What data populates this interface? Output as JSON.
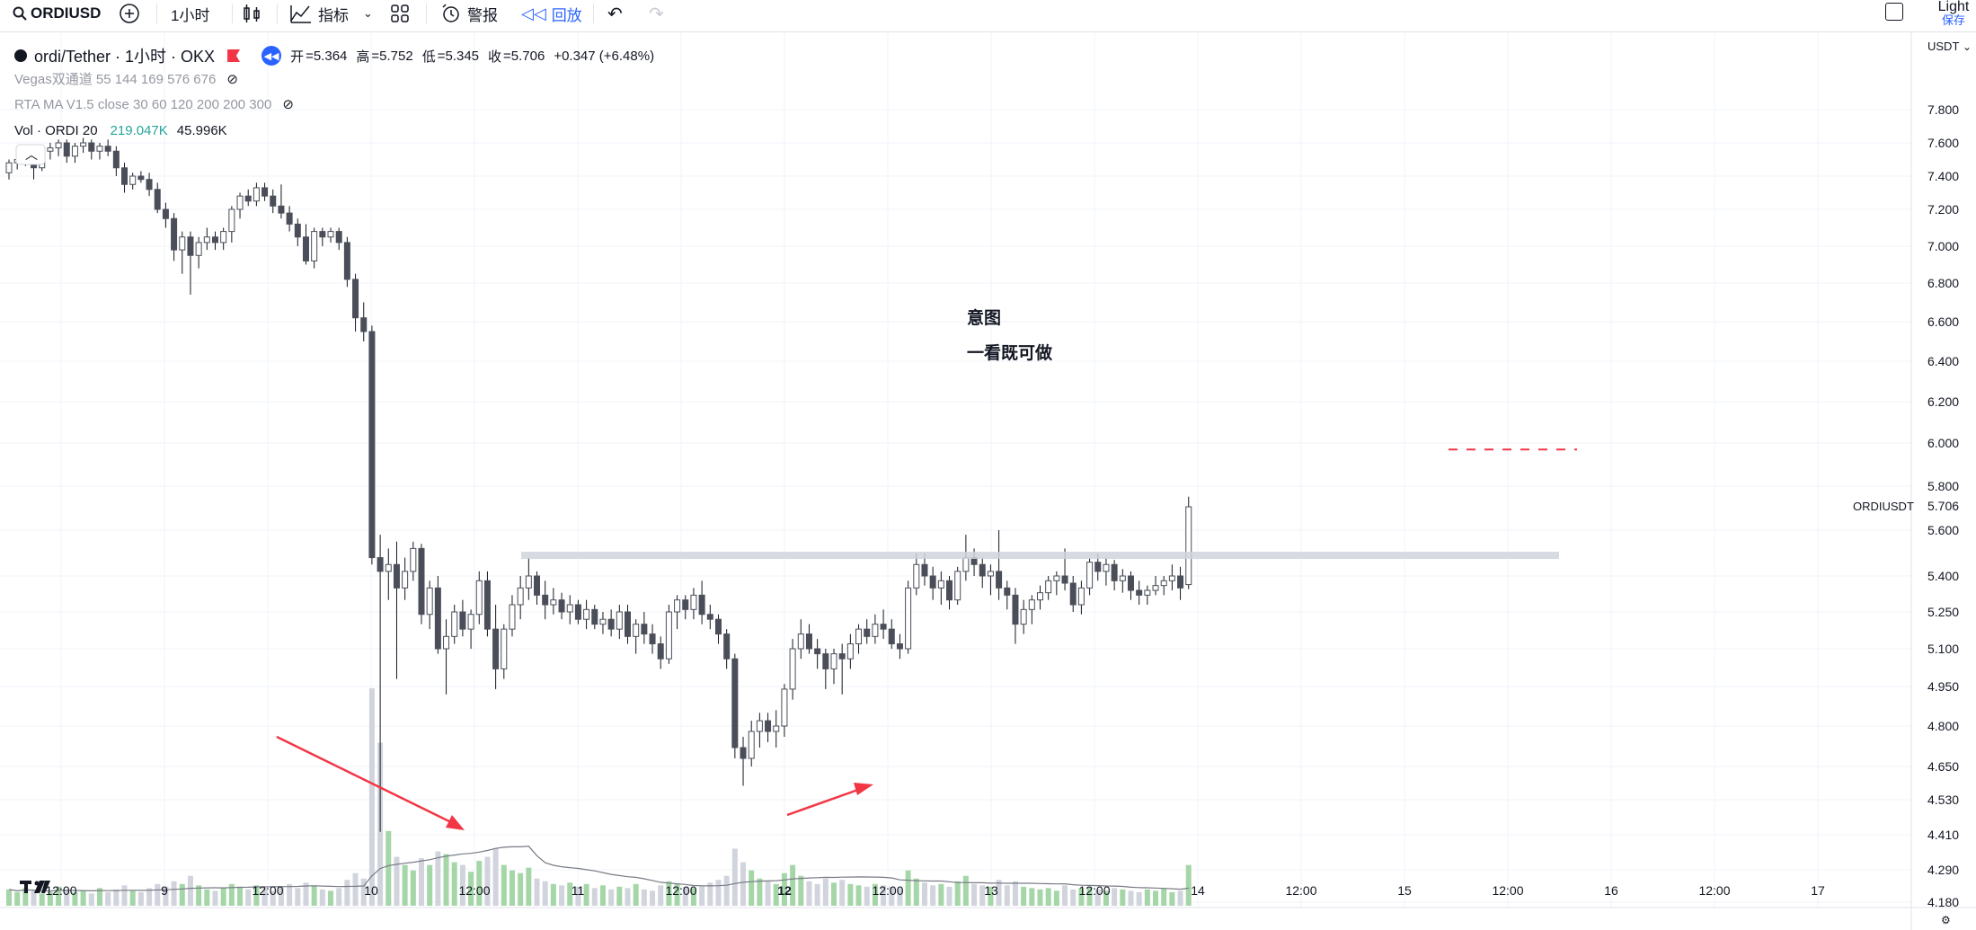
{
  "toolbar": {
    "symbol": "ORDIUSD",
    "interval": "1小时",
    "indicators": "指标",
    "alert": "警报",
    "replay": "回放",
    "theme": "Light",
    "save": "保存"
  },
  "legend": {
    "title": "ordi/Tether · 1小时 · OKX",
    "open_label": "开",
    "open": "=5.364",
    "high_label": "高",
    "high": "=5.752",
    "low_label": "低",
    "low": "=5.345",
    "close_label": "收",
    "close": "=5.706",
    "change": "+0.347 (+6.48%)",
    "indicator1": "Vegas双通道 55 144 169 576 676",
    "indicator2": "RTA MA V1.5 close 30 60 120 200 200 300",
    "volume_label": "Vol · ORDI 20",
    "volume_value": "219.047K",
    "volume_ma": "45.996K"
  },
  "annotations": {
    "line1": "意图",
    "line2": "一看既可做"
  },
  "price_axis": {
    "currency": "USDT",
    "symbol_tag": "ORDIUSDT",
    "last_price": "5.706",
    "ticks": [
      "7.800",
      "7.600",
      "7.400",
      "7.200",
      "7.000",
      "6.800",
      "6.600",
      "6.400",
      "6.200",
      "6.000",
      "5.800",
      "5.600",
      "5.400",
      "5.250",
      "5.100",
      "4.950",
      "4.800",
      "4.650",
      "4.530",
      "4.410",
      "4.290",
      "4.180"
    ]
  },
  "time_axis": {
    "labels": [
      "12:00",
      "9",
      "12:00",
      "10",
      "12:00",
      "11",
      "12:00",
      "12",
      "12:00",
      "13",
      "12:00",
      "14",
      "12:00",
      "15",
      "12:00",
      "16",
      "12:00",
      "17"
    ]
  },
  "chart_data": {
    "type": "candlestick",
    "title": "ordi/Tether · 1小时 · OKX",
    "y_axis": "USDT",
    "resistance_level": 5.49,
    "target_level": 5.97,
    "candles": [
      [
        7.42,
        7.5,
        7.38,
        7.48
      ],
      [
        7.48,
        7.54,
        7.44,
        7.5
      ],
      [
        7.5,
        7.56,
        7.46,
        7.53
      ],
      [
        7.53,
        7.55,
        7.38,
        7.45
      ],
      [
        7.45,
        7.57,
        7.43,
        7.55
      ],
      [
        7.55,
        7.6,
        7.5,
        7.57
      ],
      [
        7.57,
        7.62,
        7.52,
        7.6
      ],
      [
        7.6,
        7.62,
        7.48,
        7.52
      ],
      [
        7.52,
        7.6,
        7.48,
        7.58
      ],
      [
        7.58,
        7.63,
        7.54,
        7.6
      ],
      [
        7.6,
        7.62,
        7.5,
        7.55
      ],
      [
        7.55,
        7.6,
        7.5,
        7.58
      ],
      [
        7.58,
        7.62,
        7.52,
        7.55
      ],
      [
        7.55,
        7.58,
        7.4,
        7.45
      ],
      [
        7.45,
        7.48,
        7.3,
        7.35
      ],
      [
        7.35,
        7.42,
        7.32,
        7.4
      ],
      [
        7.4,
        7.43,
        7.36,
        7.38
      ],
      [
        7.38,
        7.42,
        7.28,
        7.32
      ],
      [
        7.32,
        7.36,
        7.18,
        7.2
      ],
      [
        7.2,
        7.24,
        7.1,
        7.15
      ],
      [
        7.15,
        7.18,
        6.92,
        6.98
      ],
      [
        6.98,
        7.08,
        6.85,
        7.05
      ],
      [
        7.05,
        7.08,
        6.74,
        6.95
      ],
      [
        6.95,
        7.05,
        6.88,
        7.02
      ],
      [
        7.02,
        7.1,
        6.98,
        7.05
      ],
      [
        7.05,
        7.08,
        6.98,
        7.02
      ],
      [
        7.02,
        7.1,
        6.98,
        7.08
      ],
      [
        7.08,
        7.22,
        7.02,
        7.2
      ],
      [
        7.2,
        7.3,
        7.15,
        7.28
      ],
      [
        7.28,
        7.32,
        7.22,
        7.25
      ],
      [
        7.25,
        7.36,
        7.22,
        7.33
      ],
      [
        7.33,
        7.36,
        7.25,
        7.28
      ],
      [
        7.28,
        7.32,
        7.18,
        7.22
      ],
      [
        7.22,
        7.35,
        7.15,
        7.18
      ],
      [
        7.18,
        7.22,
        7.08,
        7.12
      ],
      [
        7.12,
        7.15,
        7.0,
        7.05
      ],
      [
        7.05,
        7.12,
        6.9,
        6.92
      ],
      [
        6.92,
        7.1,
        6.88,
        7.08
      ],
      [
        7.08,
        7.1,
        7.0,
        7.05
      ],
      [
        7.05,
        7.1,
        7.02,
        7.08
      ],
      [
        7.08,
        7.1,
        6.98,
        7.02
      ],
      [
        7.02,
        7.05,
        6.78,
        6.82
      ],
      [
        6.82,
        6.85,
        6.55,
        6.62
      ],
      [
        6.62,
        6.7,
        6.5,
        6.55
      ],
      [
        6.55,
        6.58,
        5.45,
        5.48
      ],
      [
        5.48,
        5.58,
        4.42,
        5.42
      ],
      [
        5.42,
        5.52,
        5.3,
        5.45
      ],
      [
        5.45,
        5.55,
        4.98,
        5.35
      ],
      [
        5.35,
        5.48,
        5.3,
        5.42
      ],
      [
        5.42,
        5.55,
        5.38,
        5.52
      ],
      [
        5.52,
        5.54,
        5.2,
        5.24
      ],
      [
        5.24,
        5.38,
        5.18,
        5.35
      ],
      [
        5.35,
        5.4,
        5.08,
        5.1
      ],
      [
        5.1,
        5.22,
        4.92,
        5.15
      ],
      [
        5.15,
        5.28,
        5.12,
        5.25
      ],
      [
        5.25,
        5.3,
        5.15,
        5.18
      ],
      [
        5.18,
        5.26,
        5.1,
        5.24
      ],
      [
        5.24,
        5.42,
        5.2,
        5.38
      ],
      [
        5.38,
        5.42,
        5.15,
        5.18
      ],
      [
        5.18,
        5.28,
        4.94,
        5.02
      ],
      [
        5.02,
        5.2,
        4.98,
        5.18
      ],
      [
        5.18,
        5.32,
        5.15,
        5.28
      ],
      [
        5.28,
        5.4,
        5.22,
        5.35
      ],
      [
        5.35,
        5.48,
        5.3,
        5.4
      ],
      [
        5.4,
        5.42,
        5.28,
        5.32
      ],
      [
        5.32,
        5.38,
        5.22,
        5.28
      ],
      [
        5.28,
        5.35,
        5.24,
        5.3
      ],
      [
        5.3,
        5.33,
        5.22,
        5.25
      ],
      [
        5.25,
        5.32,
        5.2,
        5.28
      ],
      [
        5.28,
        5.3,
        5.2,
        5.22
      ],
      [
        5.22,
        5.3,
        5.18,
        5.26
      ],
      [
        5.26,
        5.28,
        5.18,
        5.2
      ],
      [
        5.2,
        5.25,
        5.16,
        5.22
      ],
      [
        5.22,
        5.26,
        5.15,
        5.18
      ],
      [
        5.18,
        5.28,
        5.14,
        5.25
      ],
      [
        5.25,
        5.28,
        5.12,
        5.15
      ],
      [
        5.15,
        5.22,
        5.08,
        5.2
      ],
      [
        5.2,
        5.25,
        5.12,
        5.16
      ],
      [
        5.16,
        5.2,
        5.08,
        5.12
      ],
      [
        5.12,
        5.15,
        5.02,
        5.06
      ],
      [
        5.06,
        5.28,
        5.04,
        5.25
      ],
      [
        5.25,
        5.32,
        5.18,
        5.3
      ],
      [
        5.3,
        5.32,
        5.22,
        5.26
      ],
      [
        5.26,
        5.35,
        5.22,
        5.32
      ],
      [
        5.32,
        5.38,
        5.2,
        5.24
      ],
      [
        5.24,
        5.28,
        5.18,
        5.22
      ],
      [
        5.22,
        5.24,
        5.12,
        5.16
      ],
      [
        5.16,
        5.18,
        5.02,
        5.06
      ],
      [
        5.06,
        5.08,
        4.68,
        4.72
      ],
      [
        4.72,
        4.76,
        4.58,
        4.68
      ],
      [
        4.68,
        4.82,
        4.65,
        4.78
      ],
      [
        4.78,
        4.85,
        4.72,
        4.82
      ],
      [
        4.82,
        4.85,
        4.74,
        4.78
      ],
      [
        4.78,
        4.86,
        4.72,
        4.8
      ],
      [
        4.8,
        4.96,
        4.76,
        4.94
      ],
      [
        4.94,
        5.14,
        4.9,
        5.1
      ],
      [
        5.1,
        5.22,
        5.06,
        5.16
      ],
      [
        5.16,
        5.2,
        5.08,
        5.1
      ],
      [
        5.1,
        5.14,
        5.02,
        5.08
      ],
      [
        5.08,
        5.1,
        4.94,
        5.02
      ],
      [
        5.02,
        5.1,
        4.96,
        5.08
      ],
      [
        5.08,
        5.12,
        4.92,
        5.06
      ],
      [
        5.06,
        5.16,
        5.02,
        5.12
      ],
      [
        5.12,
        5.2,
        5.08,
        5.18
      ],
      [
        5.18,
        5.22,
        5.12,
        5.15
      ],
      [
        5.15,
        5.24,
        5.12,
        5.2
      ],
      [
        5.2,
        5.26,
        5.14,
        5.18
      ],
      [
        5.18,
        5.22,
        5.1,
        5.12
      ],
      [
        5.12,
        5.16,
        5.06,
        5.1
      ],
      [
        5.1,
        5.38,
        5.08,
        5.35
      ],
      [
        5.35,
        5.5,
        5.32,
        5.45
      ],
      [
        5.45,
        5.5,
        5.36,
        5.4
      ],
      [
        5.4,
        5.44,
        5.3,
        5.35
      ],
      [
        5.35,
        5.42,
        5.28,
        5.38
      ],
      [
        5.38,
        5.4,
        5.26,
        5.3
      ],
      [
        5.3,
        5.44,
        5.28,
        5.42
      ],
      [
        5.42,
        5.58,
        5.38,
        5.48
      ],
      [
        5.48,
        5.52,
        5.4,
        5.45
      ],
      [
        5.45,
        5.48,
        5.35,
        5.4
      ],
      [
        5.4,
        5.45,
        5.32,
        5.42
      ],
      [
        5.42,
        5.6,
        5.3,
        5.35
      ],
      [
        5.35,
        5.38,
        5.26,
        5.32
      ],
      [
        5.32,
        5.35,
        5.12,
        5.2
      ],
      [
        5.2,
        5.3,
        5.16,
        5.26
      ],
      [
        5.26,
        5.32,
        5.2,
        5.3
      ],
      [
        5.3,
        5.36,
        5.26,
        5.33
      ],
      [
        5.33,
        5.4,
        5.3,
        5.38
      ],
      [
        5.38,
        5.42,
        5.32,
        5.4
      ],
      [
        5.4,
        5.52,
        5.34,
        5.37
      ],
      [
        5.37,
        5.4,
        5.25,
        5.28
      ],
      [
        5.28,
        5.38,
        5.24,
        5.35
      ],
      [
        5.35,
        5.48,
        5.32,
        5.46
      ],
      [
        5.46,
        5.5,
        5.38,
        5.42
      ],
      [
        5.42,
        5.48,
        5.36,
        5.45
      ],
      [
        5.45,
        5.47,
        5.34,
        5.38
      ],
      [
        5.38,
        5.43,
        5.33,
        5.4
      ],
      [
        5.4,
        5.42,
        5.3,
        5.34
      ],
      [
        5.34,
        5.38,
        5.28,
        5.32
      ],
      [
        5.32,
        5.36,
        5.28,
        5.34
      ],
      [
        5.34,
        5.4,
        5.32,
        5.36
      ],
      [
        5.36,
        5.4,
        5.32,
        5.38
      ],
      [
        5.38,
        5.45,
        5.34,
        5.4
      ],
      [
        5.4,
        5.44,
        5.3,
        5.35
      ],
      [
        5.364,
        5.752,
        5.345,
        5.706
      ]
    ],
    "volumes": [
      1.2,
      1.0,
      1.3,
      1.1,
      0.9,
      1.0,
      1.4,
      1.2,
      1.0,
      1.1,
      0.9,
      1.3,
      1.0,
      1.2,
      1.5,
      1.1,
      1.0,
      1.3,
      1.6,
      1.4,
      1.8,
      1.6,
      2.2,
      1.5,
      1.2,
      1.1,
      1.3,
      1.6,
      1.4,
      1.2,
      1.5,
      1.3,
      1.1,
      1.4,
      1.6,
      1.3,
      1.7,
      1.5,
      1.2,
      1.1,
      1.3,
      1.9,
      2.4,
      2.0,
      16.0,
      12.0,
      5.5,
      3.6,
      3.0,
      2.6,
      3.5,
      3.0,
      4.0,
      3.8,
      3.2,
      3.0,
      2.5,
      3.3,
      3.6,
      4.2,
      3.0,
      2.6,
      2.4,
      2.8,
      2.0,
      1.8,
      1.6,
      1.5,
      1.7,
      1.4,
      1.6,
      1.3,
      1.5,
      1.2,
      1.4,
      1.3,
      1.6,
      1.2,
      1.1,
      1.5,
      1.8,
      1.6,
      1.4,
      1.3,
      1.5,
      1.7,
      1.9,
      2.2,
      4.2,
      3.2,
      2.6,
      2.0,
      1.8,
      1.6,
      2.4,
      3.0,
      2.2,
      1.8,
      1.6,
      2.0,
      1.7,
      1.9,
      1.6,
      1.5,
      1.4,
      1.6,
      1.5,
      1.4,
      1.3,
      2.6,
      2.0,
      1.7,
      1.5,
      1.6,
      1.4,
      1.8,
      2.2,
      1.6,
      1.5,
      1.4,
      1.9,
      1.5,
      1.8,
      1.4,
      1.3,
      1.2,
      1.3,
      1.1,
      1.5,
      1.2,
      1.3,
      1.4,
      1.2,
      1.1,
      1.3,
      1.2,
      1.1,
      1.0,
      1.2,
      1.1,
      1.3,
      1.0,
      1.1,
      3.0
    ]
  }
}
